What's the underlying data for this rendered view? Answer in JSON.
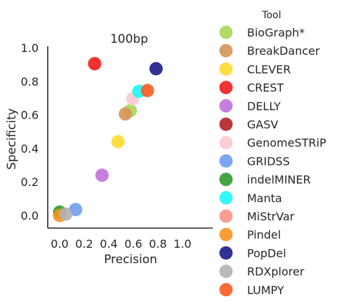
{
  "chart_data": {
    "type": "scatter",
    "title": "100bp",
    "xlabel": "Precision",
    "ylabel": "Specificity",
    "xlim": [
      -0.1,
      1.0
    ],
    "ylim": [
      -0.08,
      1.0
    ],
    "xticks": [
      "0.0",
      "0.2",
      "0.4",
      "0.6",
      "0.8",
      "1.0"
    ],
    "yticks": [
      "0.0",
      "0.2",
      "0.4",
      "0.6",
      "0.8",
      "1.0"
    ],
    "grid": false,
    "legend": {
      "title": "Tool",
      "placement": "right"
    },
    "series": [
      {
        "name": "BioGraph*",
        "color": "#a6d854",
        "points": [
          [
            0.575,
            0.625
          ]
        ]
      },
      {
        "name": "BreakDancer",
        "color": "#d4935a",
        "points": [
          [
            0.535,
            0.605
          ]
        ]
      },
      {
        "name": "CLEVER",
        "color": "#ffd92f",
        "points": [
          [
            0.475,
            0.44
          ]
        ]
      },
      {
        "name": "CREST",
        "color": "#f21c1c",
        "points": [
          [
            0.285,
            0.905
          ]
        ]
      },
      {
        "name": "DELLY",
        "color": "#c070dc",
        "points": [
          [
            0.345,
            0.24
          ]
        ]
      },
      {
        "name": "GASV",
        "color": "#b22222",
        "points": []
      },
      {
        "name": "GenomeSTRiP",
        "color": "#ffc8d0",
        "points": [
          [
            0.595,
            0.695
          ]
        ]
      },
      {
        "name": "GRIDSS",
        "color": "#6f9cef",
        "points": [
          [
            0.13,
            0.035
          ]
        ]
      },
      {
        "name": "indelMINER",
        "color": "#2e9a2e",
        "points": [
          [
            0.0,
            0.02
          ]
        ]
      },
      {
        "name": "Manta",
        "color": "#1cf8f8",
        "points": [
          [
            0.645,
            0.74
          ]
        ]
      },
      {
        "name": "MiStrVar",
        "color": "#f7938a",
        "points": []
      },
      {
        "name": "Pindel",
        "color": "#f7941d",
        "points": [
          [
            0.0,
            0.0
          ]
        ]
      },
      {
        "name": "PopDel",
        "color": "#1a1a8a",
        "points": [
          [
            0.785,
            0.875
          ]
        ]
      },
      {
        "name": "RDXplorer",
        "color": "#b3b3b3",
        "points": [
          [
            0.05,
            0.008
          ]
        ]
      },
      {
        "name": "LUMPY",
        "color": "#fc5a22",
        "points": [
          [
            0.715,
            0.745
          ]
        ]
      }
    ]
  }
}
